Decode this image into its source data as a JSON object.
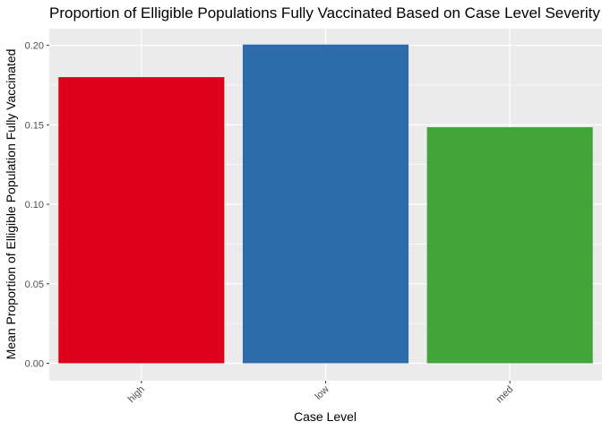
{
  "chart_data": {
    "type": "bar",
    "title": "Proportion of Elligible Populations Fully Vaccinated Based on Case Level Severity",
    "xlabel": "Case Level",
    "ylabel": "Mean Proportion of Elligible Population Fully Vaccinated",
    "categories": [
      "high",
      "low",
      "med"
    ],
    "values": [
      0.18,
      0.2005,
      0.1485
    ],
    "bar_colors": [
      "#DC001B",
      "#2D6BAA",
      "#42A53A"
    ],
    "yticks": [
      "0.00",
      "0.05",
      "0.10",
      "0.15",
      "0.20"
    ],
    "ylim": [
      -0.011,
      0.2105
    ],
    "grid": true,
    "panel_background": "#EBEBEB",
    "legend": "none"
  }
}
